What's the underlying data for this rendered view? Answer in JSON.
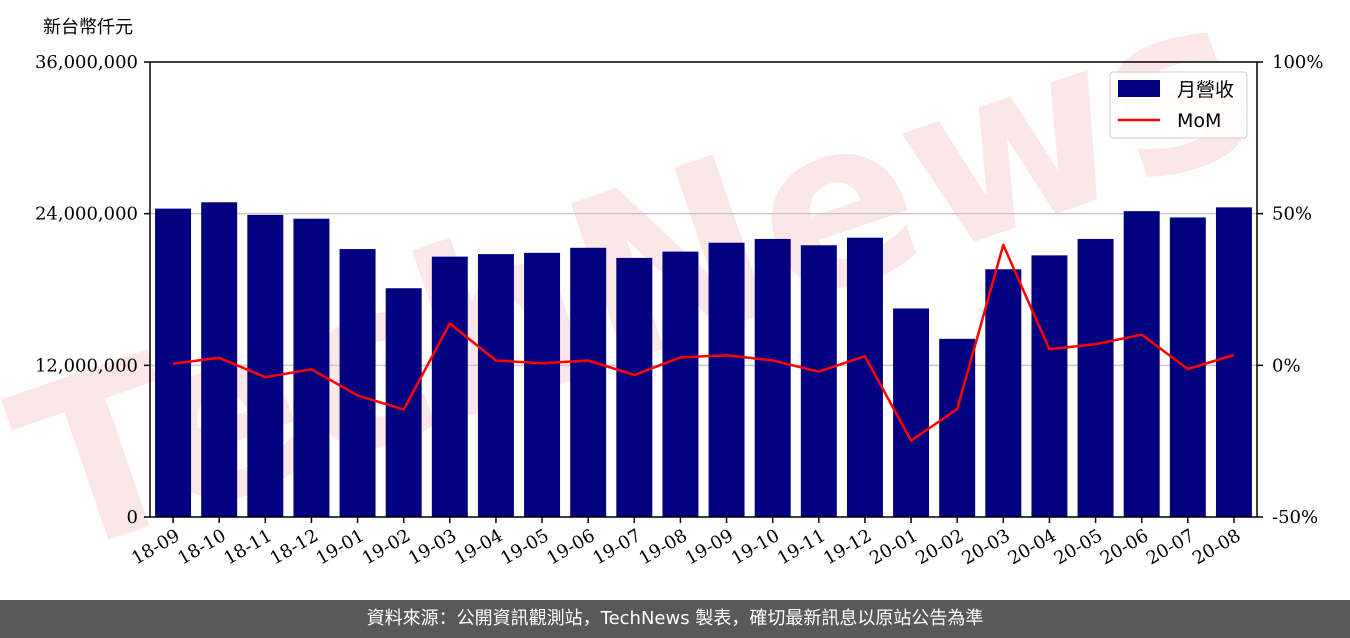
{
  "chart_data": {
    "type": "bar",
    "y_unit_label": "新台幣仟元",
    "categories": [
      "18-09",
      "18-10",
      "18-11",
      "18-12",
      "19-01",
      "19-02",
      "19-03",
      "19-04",
      "19-05",
      "19-06",
      "19-07",
      "19-08",
      "19-09",
      "19-10",
      "19-11",
      "19-12",
      "20-01",
      "20-02",
      "20-03",
      "20-04",
      "20-05",
      "20-06",
      "20-07",
      "20-08"
    ],
    "series": [
      {
        "name": "月營收",
        "type": "bar",
        "axis": "left",
        "color": "#000080",
        "values": [
          24400000,
          24900000,
          23900000,
          23600000,
          21200000,
          18100000,
          20600000,
          20800000,
          20900000,
          21300000,
          20500000,
          21000000,
          21700000,
          22000000,
          21500000,
          22100000,
          16500000,
          14100000,
          19600000,
          20700000,
          22000000,
          24200000,
          23700000,
          24500000
        ]
      },
      {
        "name": "MoM",
        "type": "line",
        "axis": "right",
        "color": "#ff0000",
        "values": [
          0.5,
          2.5,
          -3.9,
          -1.3,
          -9.9,
          -14.6,
          13.8,
          1.6,
          0.7,
          1.6,
          -3.2,
          2.6,
          3.3,
          1.6,
          -2.1,
          3.0,
          -24.8,
          -14.4,
          39.7,
          5.3,
          7.0,
          10.1,
          -1.2,
          3.4
        ]
      }
    ],
    "y_left": {
      "min": 0,
      "max": 36000000,
      "ticks": [
        0,
        12000000,
        24000000,
        36000000
      ],
      "tick_labels": [
        "0",
        "12,000,000",
        "24,000,000",
        "36,000,000"
      ]
    },
    "y_right": {
      "min": -50,
      "max": 100,
      "ticks": [
        -50,
        0,
        50,
        100
      ],
      "tick_labels": [
        "-50%",
        "0%",
        "50%",
        "100%"
      ]
    },
    "grid": "horizontal",
    "legend": "top-right"
  },
  "watermark": "TechNews",
  "footer": {
    "text": "資料來源：公開資訊觀測站，TechNews 製表，確切最新訊息以原站公告為準"
  }
}
